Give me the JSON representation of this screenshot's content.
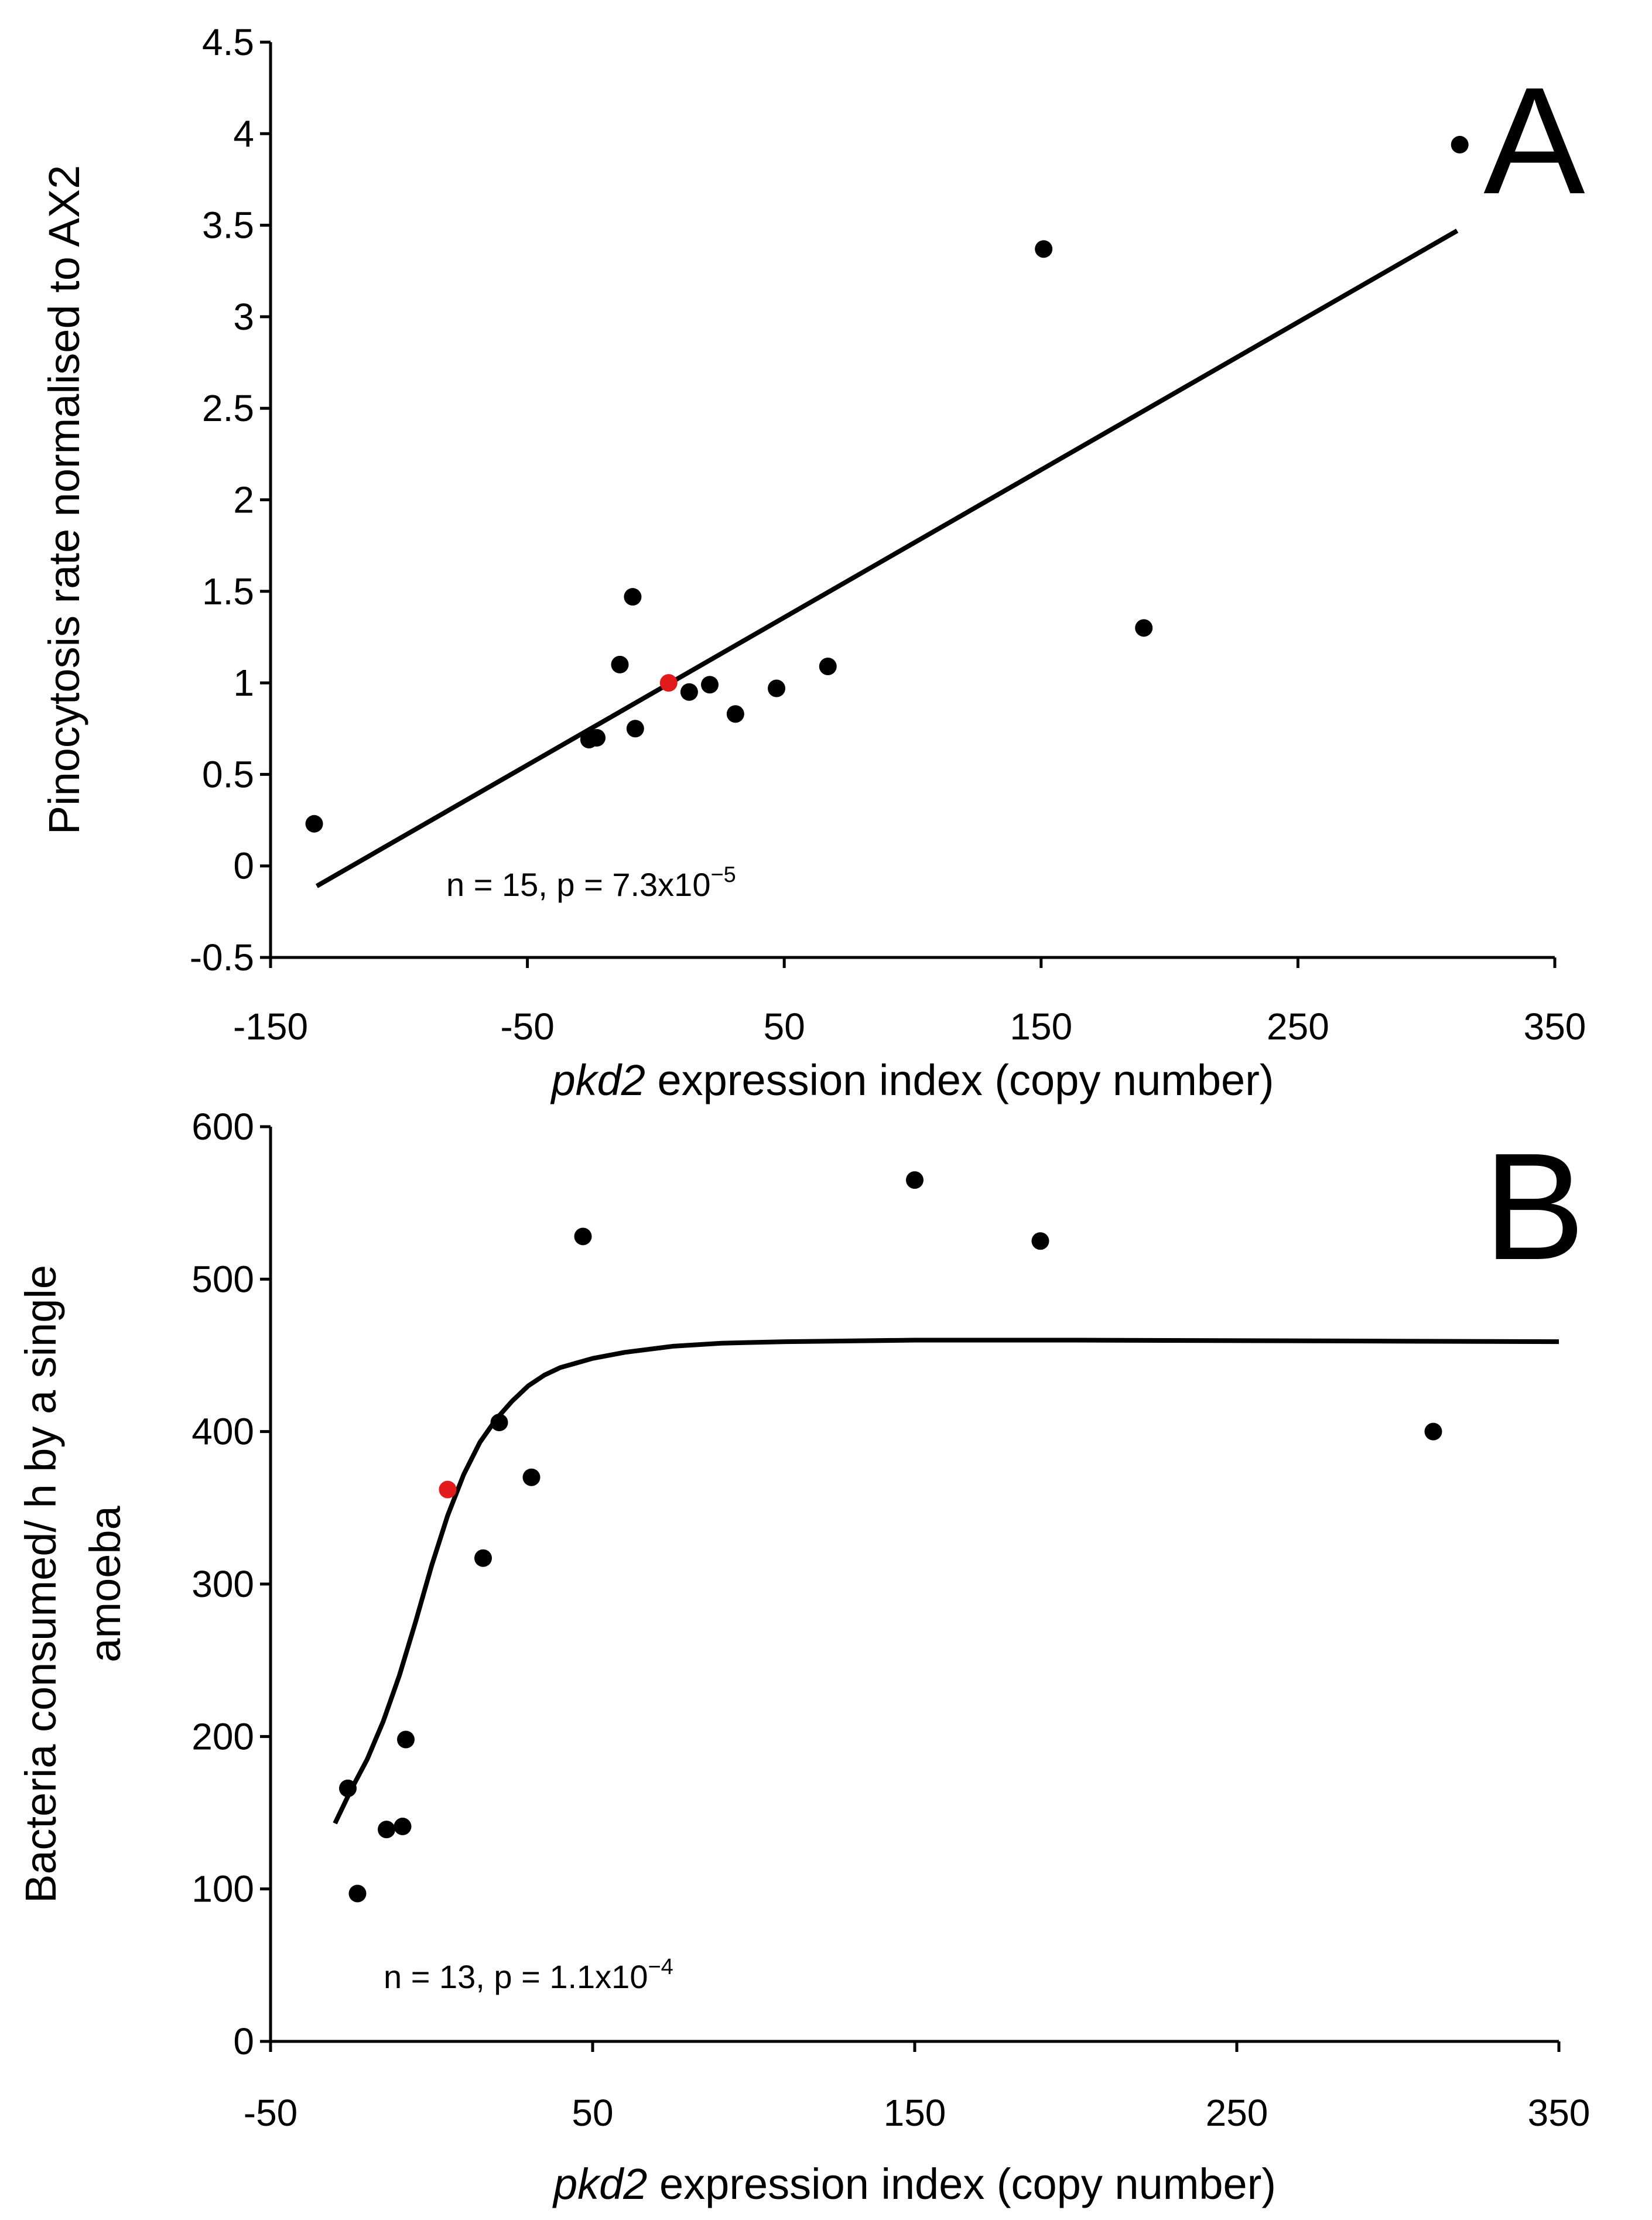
{
  "chart_data": [
    {
      "type": "scatter",
      "panel_label": "A",
      "xlabel_italic": "pkd2",
      "xlabel_rest": " expression index (copy number)",
      "ylabel": "Pinocytosis rate normalised to AX2",
      "xlim": [
        -150,
        350
      ],
      "ylim": [
        -0.5,
        4.5
      ],
      "xticks": [
        -150,
        -50,
        50,
        150,
        250,
        350
      ],
      "yticks": [
        -0.5,
        0,
        0.5,
        1,
        1.5,
        2,
        2.5,
        3,
        3.5,
        4,
        4.5
      ],
      "ytick_labels": [
        "-0.5",
        "0",
        "0.5",
        "1",
        "1.5",
        "2",
        "2.5",
        "3",
        "3.5",
        "4",
        "4.5"
      ],
      "annotation_prefix": "n = 15, p = 7.3x10",
      "annotation_exp": "−5",
      "fit_type": "linear",
      "fit_line": {
        "x": [
          -132,
          312
        ],
        "y": [
          -0.11,
          3.47
        ]
      },
      "points": [
        {
          "x": -133,
          "y": 0.23,
          "color": "#000000"
        },
        {
          "x": -26,
          "y": 0.69,
          "color": "#000000"
        },
        {
          "x": -23,
          "y": 0.7,
          "color": "#000000"
        },
        {
          "x": -14,
          "y": 1.1,
          "color": "#000000"
        },
        {
          "x": -9,
          "y": 1.47,
          "color": "#000000"
        },
        {
          "x": -8,
          "y": 0.75,
          "color": "#000000"
        },
        {
          "x": 5,
          "y": 1.0,
          "color": "#e31a1c"
        },
        {
          "x": 13,
          "y": 0.95,
          "color": "#000000"
        },
        {
          "x": 21,
          "y": 0.99,
          "color": "#000000"
        },
        {
          "x": 31,
          "y": 0.83,
          "color": "#000000"
        },
        {
          "x": 47,
          "y": 0.97,
          "color": "#000000"
        },
        {
          "x": 67,
          "y": 1.09,
          "color": "#000000"
        },
        {
          "x": 151,
          "y": 3.37,
          "color": "#000000"
        },
        {
          "x": 190,
          "y": 1.3,
          "color": "#000000"
        },
        {
          "x": 313,
          "y": 3.94,
          "color": "#000000"
        }
      ]
    },
    {
      "type": "scatter",
      "panel_label": "B",
      "xlabel_italic": "pkd2",
      "xlabel_rest": " expression index (copy number)",
      "ylabel": "Bacteria consumed/ h by a single amoeba",
      "ylabel_lines": [
        "Bacteria consumed/ h by a single",
        "amoeba"
      ],
      "xlim": [
        -50,
        350
      ],
      "ylim": [
        0,
        600
      ],
      "xticks": [
        -50,
        50,
        150,
        250,
        350
      ],
      "yticks": [
        0,
        100,
        200,
        300,
        400,
        500,
        600
      ],
      "ytick_labels": [
        "0",
        "100",
        "200",
        "300",
        "400",
        "500",
        "600"
      ],
      "annotation_prefix": "n = 13, p = 1.1x10",
      "annotation_exp": "−4",
      "fit_type": "sigmoid",
      "fit_line": {
        "x": [
          -30,
          -25,
          -20,
          -15,
          -10,
          -5,
          0,
          5,
          10,
          15,
          20,
          25,
          30,
          35,
          40,
          45,
          50,
          60,
          75,
          90,
          110,
          150,
          200,
          350
        ],
        "y": [
          143,
          165,
          185,
          210,
          240,
          275,
          312,
          345,
          372,
          393,
          408,
          420,
          430,
          437,
          442,
          445,
          448,
          452,
          456,
          458,
          459,
          460,
          460,
          459
        ]
      },
      "points": [
        {
          "x": -26,
          "y": 166,
          "color": "#000000"
        },
        {
          "x": -23,
          "y": 97,
          "color": "#000000"
        },
        {
          "x": -14,
          "y": 139,
          "color": "#000000"
        },
        {
          "x": -9,
          "y": 141,
          "color": "#000000"
        },
        {
          "x": -8,
          "y": 198,
          "color": "#000000"
        },
        {
          "x": 5,
          "y": 362,
          "color": "#e31a1c"
        },
        {
          "x": 16,
          "y": 317,
          "color": "#000000"
        },
        {
          "x": 21,
          "y": 406,
          "color": "#000000"
        },
        {
          "x": 31,
          "y": 370,
          "color": "#000000"
        },
        {
          "x": 47,
          "y": 528,
          "color": "#000000"
        },
        {
          "x": 150,
          "y": 565,
          "color": "#000000"
        },
        {
          "x": 189,
          "y": 525,
          "color": "#000000"
        },
        {
          "x": 311,
          "y": 400,
          "color": "#000000"
        }
      ]
    }
  ]
}
